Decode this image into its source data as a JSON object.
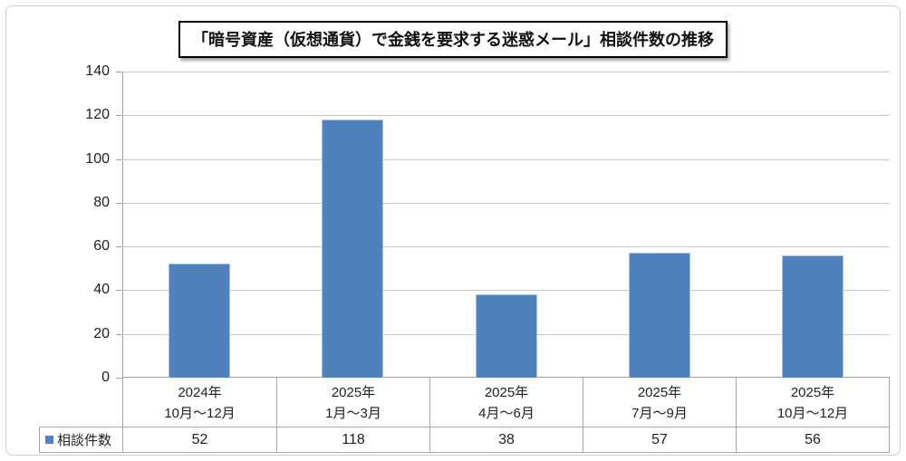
{
  "chart_data": {
    "type": "bar",
    "title": "「暗号資産（仮想通貨）で金銭を要求する迷惑メール」相談件数の推移",
    "categories": [
      "2024年\n10月～12月",
      "2025年\n1月～3月",
      "2025年\n4月～6月",
      "2025年\n7月～9月",
      "2025年\n10月～12月"
    ],
    "series": [
      {
        "name": "相談件数",
        "values": [
          52,
          118,
          38,
          57,
          56
        ]
      }
    ],
    "xlabel": "",
    "ylabel": "",
    "ylim": [
      0,
      140
    ],
    "yticks": [
      0,
      20,
      40,
      60,
      80,
      100,
      120,
      140
    ],
    "grid": true,
    "legend_position": "data-table-bottom-left",
    "data_table_shown": true,
    "colors": {
      "bar_fill": "#4f81bd",
      "bar_border": "#a8c1df",
      "gridline": "#c8c8c8",
      "axis": "#9e9e9e",
      "table_border": "#a6a6a6",
      "text": "#1f1f1f",
      "title_border": "#000000"
    }
  }
}
